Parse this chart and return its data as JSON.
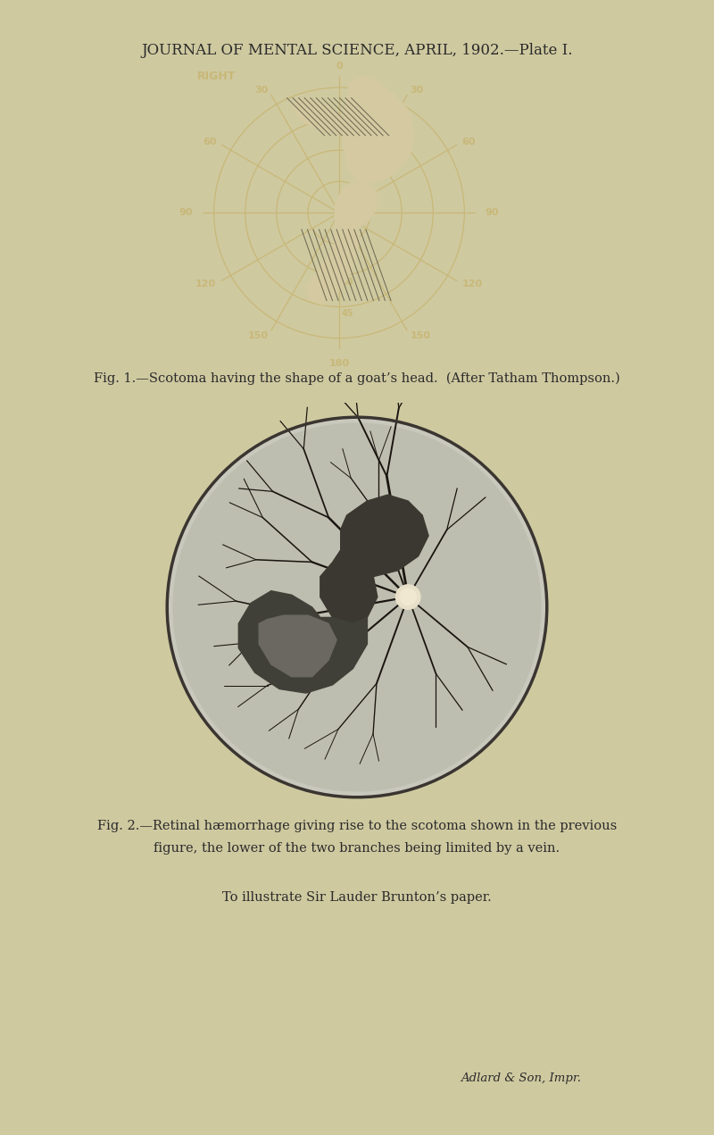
{
  "page_bg": "#cfc9a0",
  "header_text": "JOURNAL OF MENTAL SCIENCE, APRIL, 1902.—Plate I.",
  "header_fontsize": 12,
  "header_color": "#2a2a2a",
  "fig1_caption": "Fig. 1.—Scotoma having the shape of a goat’s head.  (After Tatham Thompson.)",
  "fig1_caption_fontsize": 10.5,
  "fig2_caption_line1": "Fig. 2.—Retinal hæmorrhage giving rise to the scotoma shown in the previous",
  "fig2_caption_line2": "figure, the lower of the two branches being limited by a vein.",
  "fig2_caption_fontsize": 10.5,
  "fig3_caption": "To illustrate Sir Lauder Brunton’s paper.",
  "fig3_caption_fontsize": 10.5,
  "imprint": "Adlard & Son, Impr.",
  "imprint_fontsize": 9.5,
  "polar_bg": "#060606",
  "polar_line_color": "#c8b878",
  "polar_text_color": "#c8b878",
  "polar_label_right": "RIGHT",
  "scotoma_color": "#d4c9a0",
  "scotoma_hatch_color": "#6a6550",
  "retina_bg": "#b8b8ac",
  "vessel_color": "#1a1510"
}
